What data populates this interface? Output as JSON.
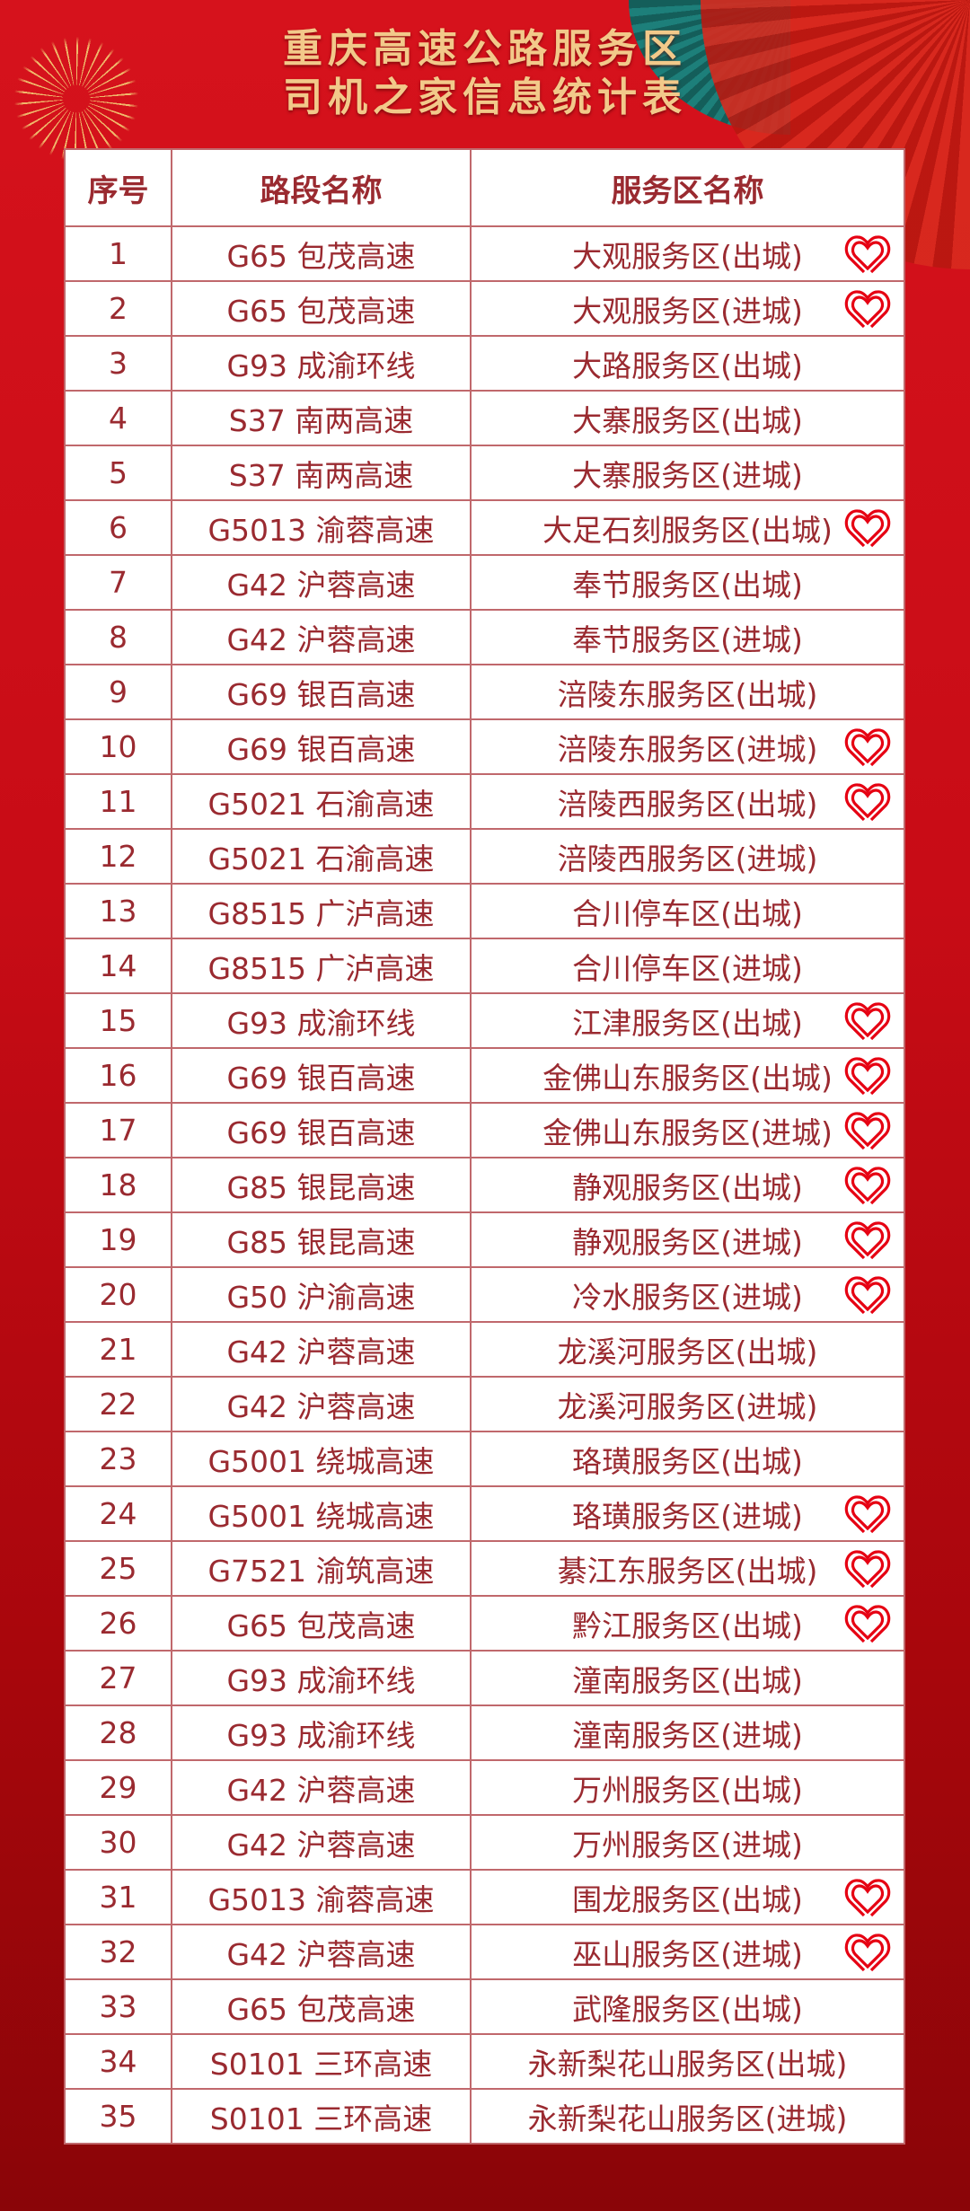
{
  "title": {
    "line1": "重庆高速公路服务区",
    "line2": "司机之家信息统计表"
  },
  "table": {
    "headers": [
      "序号",
      "路段名称",
      "服务区名称"
    ],
    "accent_color": "#e60012",
    "marker_icon": "heart-icon",
    "rows": [
      {
        "no": "1",
        "road": "G65 包茂高速",
        "area": "大观服务区(出城)",
        "heart": true
      },
      {
        "no": "2",
        "road": "G65 包茂高速",
        "area": "大观服务区(进城)",
        "heart": true
      },
      {
        "no": "3",
        "road": "G93 成渝环线",
        "area": "大路服务区(出城)",
        "heart": false
      },
      {
        "no": "4",
        "road": "S37 南两高速",
        "area": "大寨服务区(出城)",
        "heart": false
      },
      {
        "no": "5",
        "road": "S37 南两高速",
        "area": "大寨服务区(进城)",
        "heart": false
      },
      {
        "no": "6",
        "road": "G5013 渝蓉高速",
        "area": "大足石刻服务区(出城)",
        "heart": true
      },
      {
        "no": "7",
        "road": "G42 沪蓉高速",
        "area": "奉节服务区(出城)",
        "heart": false
      },
      {
        "no": "8",
        "road": "G42 沪蓉高速",
        "area": "奉节服务区(进城)",
        "heart": false
      },
      {
        "no": "9",
        "road": "G69 银百高速",
        "area": "涪陵东服务区(出城)",
        "heart": false
      },
      {
        "no": "10",
        "road": "G69 银百高速",
        "area": "涪陵东服务区(进城)",
        "heart": true
      },
      {
        "no": "11",
        "road": "G5021 石渝高速",
        "area": "涪陵西服务区(出城)",
        "heart": true
      },
      {
        "no": "12",
        "road": "G5021 石渝高速",
        "area": "涪陵西服务区(进城)",
        "heart": false
      },
      {
        "no": "13",
        "road": "G8515 广泸高速",
        "area": "合川停车区(出城)",
        "heart": false
      },
      {
        "no": "14",
        "road": "G8515 广泸高速",
        "area": "合川停车区(进城)",
        "heart": false
      },
      {
        "no": "15",
        "road": "G93 成渝环线",
        "area": "江津服务区(出城)",
        "heart": true
      },
      {
        "no": "16",
        "road": "G69 银百高速",
        "area": "金佛山东服务区(出城)",
        "heart": true
      },
      {
        "no": "17",
        "road": "G69 银百高速",
        "area": "金佛山东服务区(进城)",
        "heart": true
      },
      {
        "no": "18",
        "road": "G85 银昆高速",
        "area": "静观服务区(出城)",
        "heart": true
      },
      {
        "no": "19",
        "road": "G85 银昆高速",
        "area": "静观服务区(进城)",
        "heart": true
      },
      {
        "no": "20",
        "road": "G50 沪渝高速",
        "area": "冷水服务区(进城)",
        "heart": true
      },
      {
        "no": "21",
        "road": "G42 沪蓉高速",
        "area": "龙溪河服务区(出城)",
        "heart": false
      },
      {
        "no": "22",
        "road": "G42 沪蓉高速",
        "area": "龙溪河服务区(进城)",
        "heart": false
      },
      {
        "no": "23",
        "road": "G5001 绕城高速",
        "area": "珞璜服务区(出城)",
        "heart": false
      },
      {
        "no": "24",
        "road": "G5001 绕城高速",
        "area": "珞璜服务区(进城)",
        "heart": true
      },
      {
        "no": "25",
        "road": "G7521 渝筑高速",
        "area": "綦江东服务区(出城)",
        "heart": true
      },
      {
        "no": "26",
        "road": "G65 包茂高速",
        "area": "黔江服务区(出城)",
        "heart": true
      },
      {
        "no": "27",
        "road": "G93 成渝环线",
        "area": "潼南服务区(出城)",
        "heart": false
      },
      {
        "no": "28",
        "road": "G93 成渝环线",
        "area": "潼南服务区(进城)",
        "heart": false
      },
      {
        "no": "29",
        "road": "G42 沪蓉高速",
        "area": "万州服务区(出城)",
        "heart": false
      },
      {
        "no": "30",
        "road": "G42 沪蓉高速",
        "area": "万州服务区(进城)",
        "heart": false
      },
      {
        "no": "31",
        "road": "G5013 渝蓉高速",
        "area": "围龙服务区(出城)",
        "heart": true
      },
      {
        "no": "32",
        "road": "G42 沪蓉高速",
        "area": "巫山服务区(进城)",
        "heart": true
      },
      {
        "no": "33",
        "road": "G65 包茂高速",
        "area": "武隆服务区(出城)",
        "heart": false
      },
      {
        "no": "34",
        "road": "S0101 三环高速",
        "area": "永新梨花山服务区(出城)",
        "heart": false
      },
      {
        "no": "35",
        "road": "S0101 三环高速",
        "area": "永新梨花山服务区(进城)",
        "heart": false
      }
    ]
  }
}
